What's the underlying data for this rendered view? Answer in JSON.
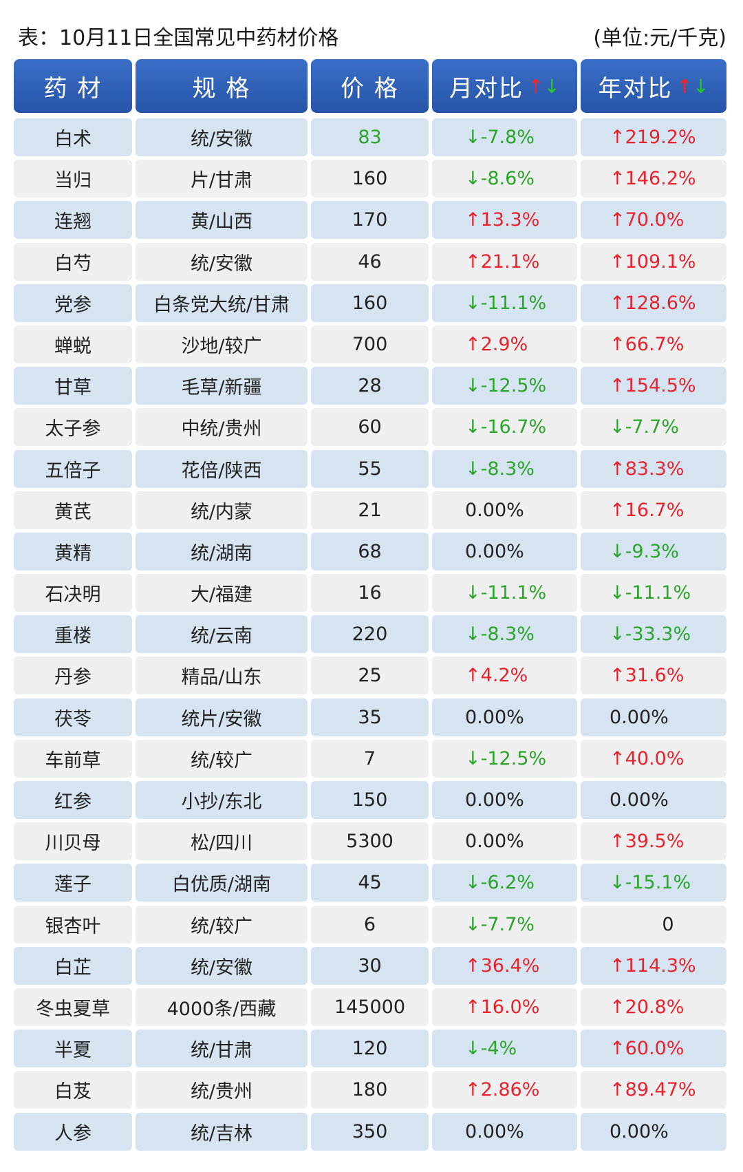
{
  "header": {
    "title": "表：10月11日全国常见中药材价格",
    "unit": "(单位:元/千克)"
  },
  "columns": {
    "name": "药 材",
    "spec": "规 格",
    "price": "价 格",
    "mom": "月对比",
    "yoy": "年对比",
    "arrow_up": "↑",
    "arrow_down": "↓"
  },
  "rows": [
    {
      "name": "白术",
      "spec": "统/安徽",
      "price": "83",
      "mom": "↓-7.8%",
      "mom_dir": "down",
      "yoy": "↑219.2%",
      "yoy_dir": "up",
      "price_color": "#2aa52a"
    },
    {
      "name": "当归",
      "spec": "片/甘肃",
      "price": "160",
      "mom": "↓-8.6%",
      "mom_dir": "down",
      "yoy": "↑146.2%",
      "yoy_dir": "up"
    },
    {
      "name": "连翘",
      "spec": "黄/山西",
      "price": "170",
      "mom": "↑13.3%",
      "mom_dir": "up",
      "yoy": "↑70.0%",
      "yoy_dir": "up"
    },
    {
      "name": "白芍",
      "spec": "统/安徽",
      "price": "46",
      "mom": "↑21.1%",
      "mom_dir": "up",
      "yoy": "↑109.1%",
      "yoy_dir": "up"
    },
    {
      "name": "党参",
      "spec": "白条党大统/甘肃",
      "price": "160",
      "mom": "↓-11.1%",
      "mom_dir": "down",
      "yoy": "↑128.6%",
      "yoy_dir": "up"
    },
    {
      "name": "蝉蜕",
      "spec": "沙地/较广",
      "price": "700",
      "mom": "↑2.9%",
      "mom_dir": "up",
      "yoy": "↑66.7%",
      "yoy_dir": "up"
    },
    {
      "name": "甘草",
      "spec": "毛草/新疆",
      "price": "28",
      "mom": "↓-12.5%",
      "mom_dir": "down",
      "yoy": "↑154.5%",
      "yoy_dir": "up"
    },
    {
      "name": "太子参",
      "spec": "中统/贵州",
      "price": "60",
      "mom": "↓-16.7%",
      "mom_dir": "down",
      "yoy": "↓-7.7%",
      "yoy_dir": "down"
    },
    {
      "name": "五倍子",
      "spec": "花倍/陕西",
      "price": "55",
      "mom": "↓-8.3%",
      "mom_dir": "down",
      "yoy": "↑83.3%",
      "yoy_dir": "up"
    },
    {
      "name": "黄芪",
      "spec": "统/内蒙",
      "price": "21",
      "mom": "0.00%",
      "mom_dir": "flat",
      "yoy": "↑16.7%",
      "yoy_dir": "up"
    },
    {
      "name": "黄精",
      "spec": "统/湖南",
      "price": "68",
      "mom": "0.00%",
      "mom_dir": "flat",
      "yoy": "↓-9.3%",
      "yoy_dir": "down"
    },
    {
      "name": "石决明",
      "spec": "大/福建",
      "price": "16",
      "mom": "↓-11.1%",
      "mom_dir": "down",
      "yoy": "↓-11.1%",
      "yoy_dir": "down"
    },
    {
      "name": "重楼",
      "spec": "统/云南",
      "price": "220",
      "mom": "↓-8.3%",
      "mom_dir": "down",
      "yoy": "↓-33.3%",
      "yoy_dir": "down"
    },
    {
      "name": "丹参",
      "spec": "精品/山东",
      "price": "25",
      "mom": "↑4.2%",
      "mom_dir": "up",
      "yoy": "↑31.6%",
      "yoy_dir": "up"
    },
    {
      "name": "茯苓",
      "spec": "统片/安徽",
      "price": "35",
      "mom": "0.00%",
      "mom_dir": "flat",
      "yoy": "0.00%",
      "yoy_dir": "flat"
    },
    {
      "name": "车前草",
      "spec": "统/较广",
      "price": "7",
      "mom": "↓-12.5%",
      "mom_dir": "down",
      "yoy": "↑40.0%",
      "yoy_dir": "up"
    },
    {
      "name": "红参",
      "spec": "小抄/东北",
      "price": "150",
      "mom": "0.00%",
      "mom_dir": "flat",
      "yoy": "0.00%",
      "yoy_dir": "flat"
    },
    {
      "name": "川贝母",
      "spec": "松/四川",
      "price": "5300",
      "mom": "0.00%",
      "mom_dir": "flat",
      "yoy": "↑39.5%",
      "yoy_dir": "up"
    },
    {
      "name": "莲子",
      "spec": "白优质/湖南",
      "price": "45",
      "mom": "↓-6.2%",
      "mom_dir": "down",
      "yoy": "↓-15.1%",
      "yoy_dir": "down"
    },
    {
      "name": "银杏叶",
      "spec": "统/较广",
      "price": "6",
      "mom": "↓-7.7%",
      "mom_dir": "down",
      "yoy": "0",
      "yoy_dir": "flat-center"
    },
    {
      "name": "白芷",
      "spec": "统/安徽",
      "price": "30",
      "mom": "↑36.4%",
      "mom_dir": "up",
      "yoy": "↑114.3%",
      "yoy_dir": "up"
    },
    {
      "name": "冬虫夏草",
      "spec": "4000条/西藏",
      "price": "145000",
      "mom": "↑16.0%",
      "mom_dir": "up",
      "yoy": "↑20.8%",
      "yoy_dir": "up"
    },
    {
      "name": "半夏",
      "spec": "统/甘肃",
      "price": "120",
      "mom": "↓-4%",
      "mom_dir": "down",
      "yoy": "↑60.0%",
      "yoy_dir": "up"
    },
    {
      "name": "白芨",
      "spec": "统/贵州",
      "price": "180",
      "mom": "↑2.86%",
      "mom_dir": "up",
      "yoy": "↑89.47%",
      "yoy_dir": "up"
    },
    {
      "name": "人参",
      "spec": "统/吉林",
      "price": "350",
      "mom": "0.00%",
      "mom_dir": "flat",
      "yoy": "0.00%",
      "yoy_dir": "flat"
    }
  ]
}
